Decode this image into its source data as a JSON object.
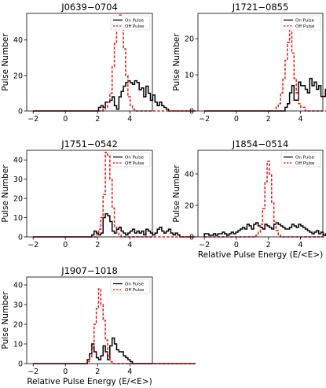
{
  "figure": {
    "common_xlabel": "Relative Pulse Energy (E/<E>)",
    "common_ylabel": "Pulse Number"
  },
  "colors": {
    "on": "#000000",
    "off": "#e41a1c"
  },
  "chart_data": [
    {
      "type": "histogram",
      "title": "J0639−0704",
      "xlim": [
        -2.4,
        5.4
      ],
      "ylim": [
        0,
        55
      ],
      "xticks": [
        -2,
        0,
        2,
        4
      ],
      "yticks": [
        0,
        20,
        40
      ],
      "xlabel": "",
      "ylabel": "Pulse Number",
      "bin_start": -2.0,
      "bin_width": 0.14,
      "legend": {
        "position": "top-right",
        "labels": [
          "On Pulse",
          "Off Pulse"
        ]
      },
      "series": [
        {
          "name": "On Pulse",
          "style": "solid",
          "values": [
            0,
            0,
            0,
            0,
            0,
            0,
            0,
            0,
            0,
            0,
            0,
            0,
            0,
            0,
            0,
            0,
            0,
            0,
            0,
            0,
            0,
            0,
            0,
            0,
            0,
            0,
            0,
            0,
            0,
            2,
            3,
            2,
            5,
            5,
            6,
            8,
            3,
            1,
            8,
            11,
            14,
            16,
            17,
            16,
            15,
            17,
            16,
            12,
            13,
            8,
            14,
            10,
            6,
            9,
            5,
            3,
            5,
            3,
            2,
            1,
            0,
            0,
            0,
            0,
            0,
            0,
            0,
            0,
            0,
            0,
            0,
            0
          ]
        },
        {
          "name": "Off Pulse",
          "style": "dashed",
          "values": [
            0,
            0,
            0,
            0,
            0,
            0,
            0,
            0,
            0,
            0,
            0,
            0,
            0,
            0,
            0,
            0,
            0,
            0,
            0,
            0,
            0,
            0,
            0,
            0,
            0,
            0,
            0,
            0,
            0,
            0,
            0,
            1,
            2,
            5,
            10,
            25,
            38,
            48,
            54,
            46,
            35,
            20,
            8,
            3,
            1,
            0,
            0,
            0,
            0,
            0,
            0,
            0,
            0,
            0,
            0,
            0,
            0,
            0,
            0,
            0,
            0,
            0,
            0,
            0,
            0,
            0,
            0,
            0,
            0,
            0,
            0,
            0
          ]
        }
      ]
    },
    {
      "type": "histogram",
      "title": "J1721−0855",
      "xlim": [
        -2.4,
        5.4
      ],
      "ylim": [
        0,
        27
      ],
      "xticks": [
        -2,
        0,
        2,
        4
      ],
      "yticks": [
        0,
        10,
        20
      ],
      "xlabel": "",
      "ylabel": "Pulse Number",
      "bin_start": -2.0,
      "bin_width": 0.14,
      "legend": {
        "position": "top-right",
        "labels": [
          "On Pulse",
          "Off Pulse"
        ]
      },
      "series": [
        {
          "name": "On Pulse",
          "style": "solid",
          "values": [
            0,
            0,
            0,
            0,
            0,
            0,
            0,
            0,
            0,
            0,
            0,
            0,
            0,
            0,
            0,
            0,
            0,
            0,
            0,
            0,
            0,
            0,
            0,
            0,
            0,
            0,
            0,
            0,
            0,
            0,
            0,
            0,
            0,
            0,
            0,
            0,
            1,
            2,
            5,
            7,
            3,
            3,
            8,
            7,
            7,
            6,
            5,
            9,
            7,
            8,
            6,
            7,
            4,
            4,
            6,
            5,
            2,
            2,
            1,
            0,
            0,
            0,
            0,
            0,
            0,
            0,
            0,
            0,
            0,
            0,
            0,
            0
          ]
        },
        {
          "name": "Off Pulse",
          "style": "dashed",
          "values": [
            0,
            0,
            0,
            0,
            0,
            0,
            0,
            0,
            0,
            0,
            0,
            0,
            0,
            0,
            0,
            0,
            0,
            0,
            0,
            0,
            0,
            0,
            0,
            0,
            0,
            0,
            0,
            0,
            0,
            0,
            0,
            0,
            1,
            2,
            5,
            9,
            14,
            19,
            24,
            16,
            9,
            5,
            2,
            1,
            1,
            0,
            0,
            0,
            0,
            0,
            0,
            0,
            0,
            0,
            0,
            0,
            0,
            0,
            0,
            0,
            0,
            0,
            0,
            0,
            0,
            0,
            0,
            0,
            0,
            0,
            0,
            0
          ]
        }
      ]
    },
    {
      "type": "histogram",
      "title": "J1751−0542",
      "xlim": [
        -2.4,
        5.4
      ],
      "ylim": [
        0,
        45
      ],
      "xticks": [
        -2,
        0,
        2,
        4
      ],
      "yticks": [
        0,
        10,
        20,
        30,
        40
      ],
      "xlabel": "",
      "ylabel": "Pulse Number",
      "bin_start": -2.0,
      "bin_width": 0.14,
      "legend": {
        "position": "top-right",
        "labels": [
          "On Pulse",
          "Off Pulse"
        ]
      },
      "series": [
        {
          "name": "On Pulse",
          "style": "solid",
          "values": [
            0,
            0,
            0,
            0,
            0,
            0,
            0,
            0,
            0,
            0,
            0,
            0,
            0,
            0,
            0,
            0,
            0,
            0,
            0,
            0,
            0,
            0,
            0,
            0,
            0,
            0,
            1,
            3,
            2,
            1,
            2,
            10,
            12,
            11,
            8,
            3,
            2,
            4,
            5,
            3,
            2,
            1,
            2,
            3,
            4,
            2,
            3,
            2,
            3,
            1,
            4,
            3,
            2,
            1,
            2,
            4,
            5,
            3,
            2,
            3,
            4,
            2,
            1,
            2,
            1,
            0,
            0,
            0,
            0,
            0,
            0,
            0
          ]
        },
        {
          "name": "Off Pulse",
          "style": "dashed",
          "values": [
            0,
            0,
            0,
            0,
            0,
            0,
            0,
            0,
            0,
            0,
            0,
            0,
            0,
            0,
            0,
            0,
            0,
            0,
            0,
            0,
            0,
            0,
            0,
            0,
            0,
            0,
            0,
            0,
            1,
            4,
            10,
            22,
            44,
            42,
            30,
            15,
            5,
            2,
            1,
            0,
            0,
            0,
            0,
            0,
            0,
            0,
            0,
            0,
            0,
            0,
            0,
            0,
            0,
            0,
            0,
            0,
            0,
            0,
            0,
            0,
            0,
            0,
            0,
            0,
            0,
            0,
            0,
            0,
            0,
            0,
            0,
            0
          ]
        }
      ]
    },
    {
      "type": "histogram",
      "title": "J1854−0514",
      "xlim": [
        -2.4,
        5.4
      ],
      "ylim": [
        0,
        55
      ],
      "xticks": [
        -2,
        0,
        2,
        4
      ],
      "yticks": [
        0,
        20,
        40
      ],
      "xlabel": "Relative Pulse Energy (E/<E>)",
      "ylabel": "Pulse Number",
      "bin_start": -2.0,
      "bin_width": 0.14,
      "legend": {
        "position": "top-right",
        "labels": [
          "On Pulse",
          "Off Pulse"
        ]
      },
      "series": [
        {
          "name": "On Pulse",
          "style": "solid",
          "values": [
            2,
            2,
            1,
            1,
            2,
            1,
            2,
            2,
            3,
            2,
            1,
            2,
            3,
            2,
            3,
            4,
            5,
            6,
            5,
            8,
            7,
            5,
            8,
            9,
            7,
            6,
            5,
            8,
            7,
            6,
            5,
            8,
            9,
            8,
            7,
            6,
            5,
            5,
            6,
            8,
            7,
            6,
            8,
            7,
            6,
            5,
            4,
            3,
            2,
            3,
            4,
            2,
            3,
            1,
            2,
            3,
            1,
            1,
            0,
            0,
            0,
            0,
            0,
            0,
            0,
            0,
            0,
            0,
            0,
            0,
            0,
            0
          ]
        },
        {
          "name": "Off Pulse",
          "style": "dashed",
          "values": [
            0,
            0,
            0,
            0,
            0,
            0,
            0,
            0,
            0,
            0,
            0,
            0,
            0,
            0,
            0,
            0,
            0,
            0,
            0,
            0,
            0,
            0,
            0,
            1,
            3,
            8,
            18,
            35,
            48,
            40,
            22,
            10,
            4,
            1,
            0,
            0,
            0,
            0,
            0,
            0,
            0,
            0,
            0,
            0,
            0,
            0,
            0,
            0,
            0,
            0,
            0,
            0,
            0,
            0,
            0,
            0,
            0,
            0,
            0,
            0,
            0,
            0,
            0,
            0,
            0,
            0,
            0,
            0,
            0,
            0,
            0,
            0
          ]
        }
      ]
    },
    {
      "type": "histogram",
      "title": "J1907−1018",
      "xlim": [
        -2.4,
        5.4
      ],
      "ylim": [
        0,
        44
      ],
      "xticks": [
        -2,
        0,
        2,
        4
      ],
      "yticks": [
        0,
        10,
        20,
        30,
        40
      ],
      "xlabel": "Relative Pulse Energy (E/<E>)",
      "ylabel": "Pulse Number",
      "bin_start": -2.0,
      "bin_width": 0.14,
      "legend": {
        "position": "top-right",
        "labels": [
          "On Pulse",
          "Off Pulse"
        ]
      },
      "series": [
        {
          "name": "On Pulse",
          "style": "solid",
          "values": [
            0,
            0,
            0,
            0,
            0,
            0,
            0,
            0,
            0,
            0,
            0,
            0,
            0,
            0,
            0,
            0,
            0,
            0,
            0,
            0,
            0,
            0,
            0,
            0,
            2,
            5,
            10,
            6,
            3,
            2,
            4,
            9,
            6,
            2,
            9,
            13,
            10,
            7,
            6,
            6,
            4,
            3,
            2,
            1,
            0,
            0,
            0,
            0,
            0,
            0,
            0,
            0,
            0,
            0,
            0,
            0,
            0,
            0,
            0,
            0,
            0,
            0,
            0,
            0,
            0,
            0,
            0,
            0,
            0,
            0,
            0,
            0
          ]
        },
        {
          "name": "Off Pulse",
          "style": "dashed",
          "values": [
            0,
            0,
            0,
            0,
            0,
            0,
            0,
            0,
            0,
            0,
            0,
            0,
            0,
            0,
            0,
            0,
            0,
            0,
            0,
            0,
            0,
            0,
            0,
            0,
            1,
            3,
            8,
            20,
            28,
            38,
            30,
            22,
            12,
            4,
            1,
            0,
            0,
            0,
            0,
            0,
            0,
            0,
            0,
            0,
            0,
            0,
            0,
            0,
            0,
            0,
            0,
            0,
            0,
            0,
            0,
            0,
            0,
            0,
            0,
            0,
            0,
            0,
            0,
            0,
            0,
            0,
            0,
            0,
            0,
            0,
            0,
            0
          ]
        }
      ]
    }
  ]
}
